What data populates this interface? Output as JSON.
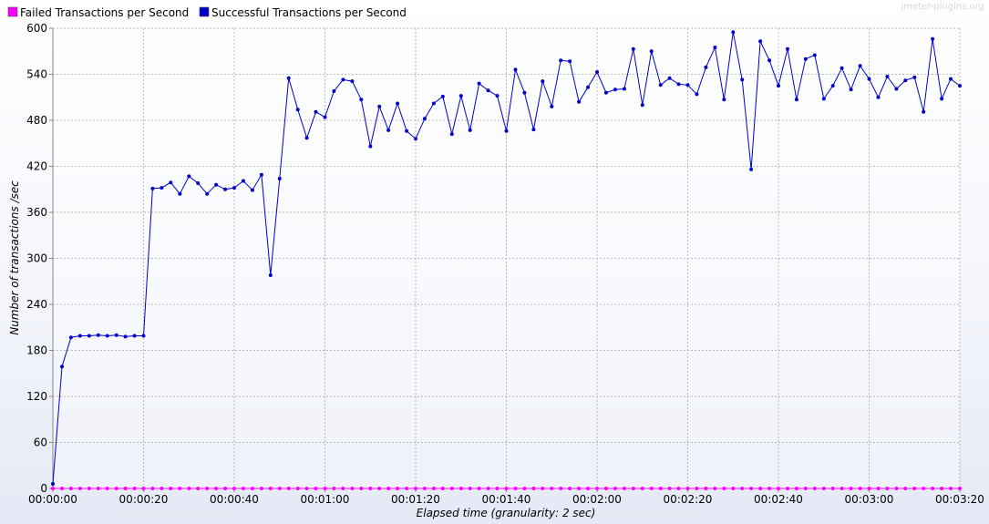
{
  "watermark": "jmeter-plugins.org",
  "colors": {
    "failed": "#ff00ff",
    "success": "#0000cc",
    "grid": "#b8b8b8",
    "axis": "#888888"
  },
  "chart_data": {
    "type": "line",
    "title": "",
    "xlabel": "Elapsed time (granularity: 2 sec)",
    "ylabel": "Number of transactions /sec",
    "xlim": [
      0,
      200
    ],
    "ylim": [
      0,
      600
    ],
    "x_ticks": [
      0,
      20,
      40,
      60,
      80,
      100,
      120,
      140,
      160,
      180,
      200
    ],
    "x_tick_labels": [
      "00:00:00",
      "00:00:20",
      "00:00:40",
      "00:01:00",
      "00:01:20",
      "00:01:40",
      "00:02:00",
      "00:02:20",
      "00:02:40",
      "00:03:00",
      "00:03:20"
    ],
    "y_ticks": [
      0,
      60,
      120,
      180,
      240,
      300,
      360,
      420,
      480,
      540,
      600
    ],
    "y_tick_labels": [
      "0",
      "60",
      "120",
      "180",
      "240",
      "300",
      "360",
      "420",
      "480",
      "540",
      "600"
    ],
    "legend": [
      "Failed Transactions per Second",
      "Successful Transactions per Second"
    ],
    "x_step_seconds": 2,
    "series": [
      {
        "name": "Failed Transactions per Second",
        "values": [
          0,
          0,
          0,
          0,
          0,
          0,
          0,
          0,
          0,
          0,
          0,
          0,
          0,
          0,
          0,
          0,
          0,
          0,
          0,
          0,
          0,
          0,
          0,
          0,
          0,
          0,
          0,
          0,
          0,
          0,
          0,
          0,
          0,
          0,
          0,
          0,
          0,
          0,
          0,
          0,
          0,
          0,
          0,
          0,
          0,
          0,
          0,
          0,
          0,
          0,
          0,
          0,
          0,
          0,
          0,
          0,
          0,
          0,
          0,
          0,
          0,
          0,
          0,
          0,
          0,
          0,
          0,
          0,
          0,
          0,
          0,
          0,
          0,
          0,
          0,
          0,
          0,
          0,
          0,
          0,
          0,
          0,
          0,
          0,
          0,
          0,
          0,
          0,
          0,
          0,
          0,
          0,
          0,
          0,
          0,
          0,
          0,
          0,
          0,
          0,
          0
        ]
      },
      {
        "name": "Successful Transactions per Second",
        "values": [
          6,
          159,
          197,
          199,
          199,
          200,
          199,
          200,
          198,
          199,
          199,
          391,
          392,
          399,
          384,
          407,
          398,
          384,
          396,
          390,
          392,
          401,
          389,
          409,
          278,
          404,
          535,
          494,
          457,
          491,
          484,
          518,
          533,
          531,
          507,
          446,
          498,
          467,
          502,
          466,
          456,
          482,
          502,
          511,
          462,
          512,
          467,
          528,
          519,
          512,
          466,
          546,
          516,
          468,
          531,
          498,
          558,
          557,
          504,
          523,
          543,
          516,
          520,
          521,
          573,
          500,
          570,
          526,
          535,
          527,
          526,
          514,
          549,
          575,
          507,
          595,
          533,
          416,
          583,
          558,
          525,
          573,
          507,
          560,
          565,
          508,
          525,
          548,
          520,
          551,
          534,
          510,
          537,
          521,
          532,
          536,
          491,
          586,
          508,
          534,
          525
        ]
      }
    ]
  }
}
